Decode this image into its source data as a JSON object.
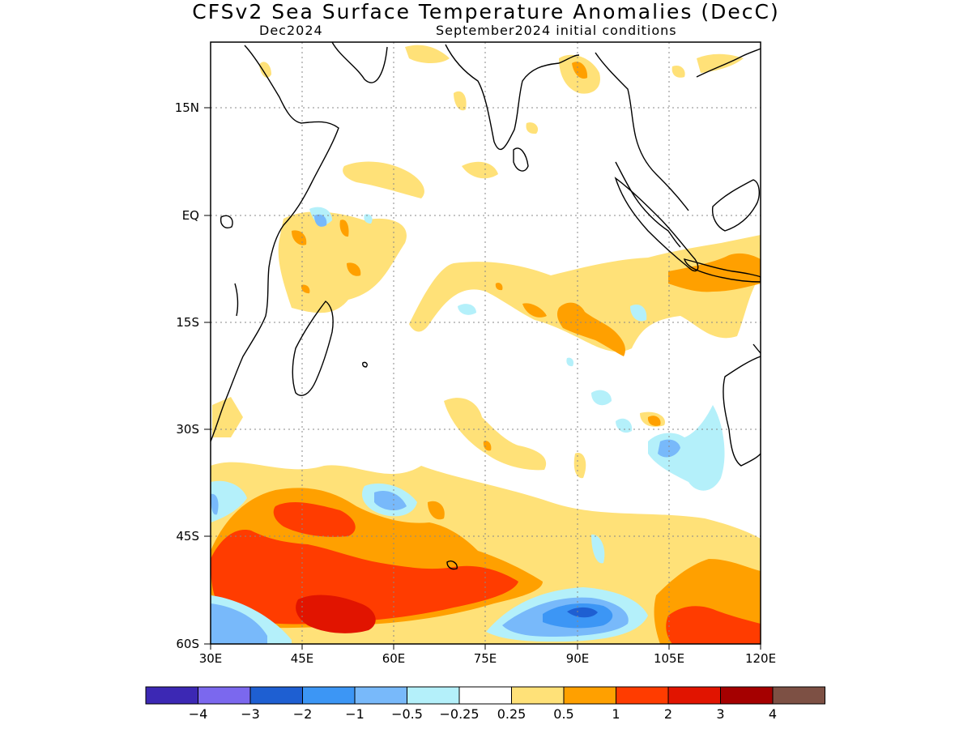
{
  "header": {
    "title": "CFSv2 Sea Surface Temperature Anomalies (DecC)",
    "valid_month": "Dec2024",
    "initial_conditions": "September2024 initial conditions"
  },
  "map": {
    "lon_range": [
      30,
      120
    ],
    "lat_range": [
      -60,
      24
    ],
    "lat_ticks": [
      {
        "value": 15,
        "label": "15N"
      },
      {
        "value": 0,
        "label": "EQ"
      },
      {
        "value": -15,
        "label": "15S"
      },
      {
        "value": -30,
        "label": "30S"
      },
      {
        "value": -45,
        "label": "45S"
      },
      {
        "value": -60,
        "label": "60S"
      }
    ],
    "lon_ticks": [
      {
        "value": 30,
        "label": "30E"
      },
      {
        "value": 45,
        "label": "45E"
      },
      {
        "value": 60,
        "label": "60E"
      },
      {
        "value": 75,
        "label": "75E"
      },
      {
        "value": 90,
        "label": "90E"
      },
      {
        "value": 105,
        "label": "105E"
      },
      {
        "value": 120,
        "label": "120E"
      }
    ],
    "gridlines": true
  },
  "colorbar": {
    "colors": [
      "#3c28b4",
      "#7b68ee",
      "#1e5fd2",
      "#3c96f5",
      "#78b9fa",
      "#b4f0fa",
      "#ffffff",
      "#ffe178",
      "#ffa000",
      "#ff3c00",
      "#e11400",
      "#a50000",
      "#7d5044"
    ],
    "labels": [
      "−4",
      "−3",
      "−2",
      "−1",
      "−0.5",
      "−0.25",
      "0.25",
      "0.5",
      "1",
      "2",
      "3",
      "4"
    ]
  }
}
